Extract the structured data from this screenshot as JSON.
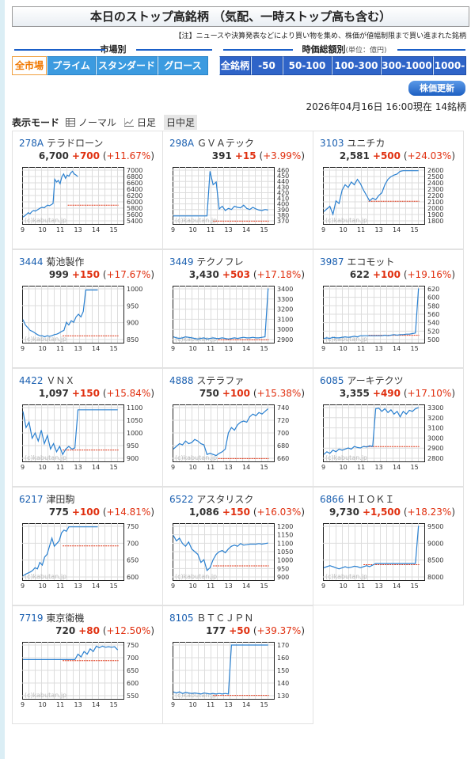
{
  "page": {
    "title": "本日のストップ高銘柄 （気配、一時ストップ高も含む）",
    "note_tag": "【注】",
    "note": "ニュースや決算発表などにより買い物を集め、株価が値幅制限まで買い進まれた銘柄",
    "market_label": "市場別",
    "cap_label": "時価総額別",
    "cap_unit": "(単位：億円)",
    "market_buttons": [
      "全市場",
      "プライム",
      "スタンダード",
      "グロース"
    ],
    "cap_buttons": [
      "全銘柄",
      "-50",
      "50-100",
      "100-300",
      "300-1000",
      "1000-"
    ],
    "update_button": "株価更新",
    "timestamp": "2026年04月16日  16:00現在  14銘柄",
    "mode_label": "表示モード",
    "modes": [
      "ノーマル",
      "日足",
      "日中足"
    ]
  },
  "colors": {
    "accent": "#1a5fc8",
    "up": "#e03010",
    "line": "#2a80d0",
    "ref": "#e03010"
  },
  "stocks": [
    {
      "code": "278A",
      "name": "テラドローン",
      "price": "6,700",
      "change": "+700",
      "pct": "+11.67%",
      "yticks": [
        "7000",
        "6800",
        "6600",
        "6400",
        "6200",
        "6000",
        "5800",
        "5600",
        "5400"
      ],
      "series": [
        0.1,
        0.12,
        0.15,
        0.18,
        0.16,
        0.2,
        0.22,
        0.21,
        0.23,
        0.25,
        0.27,
        0.28,
        0.27,
        0.3,
        0.32,
        0.31,
        0.33,
        0.35,
        0.8,
        0.75,
        0.78,
        0.72,
        0.85,
        0.9,
        0.82,
        0.88,
        0.86,
        0.92,
        0.95,
        0.9,
        0.88,
        0.85
      ],
      "ref": 0.33,
      "refFrom": 0.45,
      "refTo": 0.95,
      "xend": 0.55,
      "jumpAt": 0.42
    },
    {
      "code": "298A",
      "name": "ＧＶＡテック",
      "price": "391",
      "change": "+15",
      "pct": "+3.99%",
      "yticks": [
        "460",
        "450",
        "440",
        "430",
        "420",
        "410",
        "400",
        "390",
        "380",
        "370"
      ],
      "series": [
        0.12,
        0.12,
        0.12,
        0.12,
        0.12,
        0.12,
        0.12,
        0.12,
        0.12,
        0.12,
        0.12,
        0.12,
        0.95,
        0.7,
        0.75,
        0.25,
        0.3,
        0.22,
        0.26,
        0.24,
        0.3,
        0.28,
        0.27,
        0.32,
        0.26,
        0.24,
        0.28,
        0.25,
        0.23,
        0.22,
        0.24,
        0.23
      ],
      "ref": 0.05,
      "refFrom": 0.4,
      "refTo": 0.95,
      "xend": 0.95
    },
    {
      "code": "3103",
      "name": "ユニチカ",
      "price": "2,581",
      "change": "+500",
      "pct": "+24.03%",
      "yticks": [
        "2600",
        "2500",
        "2400",
        "2300",
        "2200",
        "2100",
        "2000",
        "1900",
        "1800"
      ],
      "series": [
        0.2,
        0.25,
        0.3,
        0.15,
        0.4,
        0.35,
        0.6,
        0.7,
        0.65,
        0.75,
        0.7,
        0.8,
        0.72,
        0.6,
        0.5,
        0.4,
        0.45,
        0.42,
        0.5,
        0.55,
        0.7,
        0.8,
        0.85,
        0.88,
        0.9,
        0.95,
        0.96,
        0.96,
        0.96,
        0.96,
        0.96,
        0.96
      ],
      "ref": 0.4,
      "refFrom": 0.45,
      "refTo": 0.95,
      "xend": 0.95
    },
    {
      "code": "3444",
      "name": "菊池製作",
      "price": "999",
      "change": "+150",
      "pct": "+17.67%",
      "yticks": [
        "1000",
        "950",
        "900",
        "850"
      ],
      "series": [
        0.4,
        0.3,
        0.25,
        0.2,
        0.18,
        0.15,
        0.12,
        0.1,
        0.1,
        0.08,
        0.1,
        0.09,
        0.1,
        0.12,
        0.13,
        0.15,
        0.18,
        0.2,
        0.35,
        0.3,
        0.38,
        0.35,
        0.45,
        0.5,
        0.45,
        0.55,
        0.95,
        0.95,
        0.95,
        0.95,
        0.95,
        0.95
      ],
      "ref": 0.12,
      "refFrom": 0.4,
      "refTo": 0.95,
      "xend": 0.75
    },
    {
      "code": "3449",
      "name": "テクノフレ",
      "price": "3,430",
      "change": "+503",
      "pct": "+17.18%",
      "yticks": [
        "3400",
        "3300",
        "3200",
        "3100",
        "3000",
        "2900"
      ],
      "series": [
        0.08,
        0.06,
        0.05,
        0.06,
        0.08,
        0.07,
        0.06,
        0.05,
        0.04,
        0.05,
        0.06,
        0.04,
        0.05,
        0.06,
        0.05,
        0.05,
        0.06,
        0.05,
        0.04,
        0.05,
        0.06,
        0.05,
        0.06,
        0.07,
        0.06,
        0.06,
        0.07,
        0.06,
        0.06,
        0.07,
        0.08,
        0.98
      ],
      "ref": 0.05,
      "refFrom": 0.45,
      "refTo": 0.95,
      "xend": 0.95
    },
    {
      "code": "3987",
      "name": "エコモット",
      "price": "622",
      "change": "+100",
      "pct": "+19.16%",
      "yticks": [
        "620",
        "600",
        "580",
        "560",
        "540",
        "520",
        "500"
      ],
      "series": [
        0.05,
        0.06,
        0.05,
        0.07,
        0.06,
        0.06,
        0.07,
        0.08,
        0.07,
        0.08,
        0.09,
        0.08,
        0.1,
        0.1,
        0.1,
        0.1,
        0.1,
        0.1,
        0.1,
        0.1,
        0.11,
        0.1,
        0.11,
        0.12,
        0.11,
        0.12,
        0.12,
        0.13,
        0.13,
        0.14,
        0.15,
        0.98
      ],
      "ref": 0.13,
      "refFrom": 0.45,
      "refTo": 0.95,
      "xend": 0.95
    },
    {
      "code": "4422",
      "name": "ＶＮＸ",
      "price": "1,097",
      "change": "+150",
      "pct": "+15.84%",
      "yticks": [
        "1100",
        "1050",
        "1000",
        "950",
        "900"
      ],
      "series": [
        0.9,
        0.6,
        0.7,
        0.4,
        0.5,
        0.35,
        0.55,
        0.3,
        0.45,
        0.2,
        0.3,
        0.15,
        0.25,
        0.1,
        0.2,
        0.25,
        0.2,
        0.22,
        0.93,
        0.93,
        0.93,
        0.93,
        0.93,
        0.93,
        0.93,
        0.93,
        0.93,
        0.93,
        0.93,
        0.93,
        0.93,
        0.93
      ],
      "ref": 0.2,
      "refFrom": 0.4,
      "refTo": 0.95,
      "xend": 0.95,
      "gapAt": 0.55
    },
    {
      "code": "4888",
      "name": "ステラファ",
      "price": "750",
      "change": "+100",
      "pct": "+15.38%",
      "yticks": [
        "740",
        "720",
        "700",
        "680",
        "660"
      ],
      "series": [
        0.2,
        0.25,
        0.3,
        0.28,
        0.35,
        0.3,
        0.32,
        0.38,
        0.35,
        0.3,
        0.28,
        0.1,
        0.12,
        0.1,
        0.08,
        0.12,
        0.15,
        0.2,
        0.5,
        0.6,
        0.55,
        0.65,
        0.7,
        0.72,
        0.7,
        0.8,
        0.85,
        0.82,
        0.88,
        0.85,
        0.9,
        0.95
      ],
      "ref": 0.05,
      "refFrom": 0.45,
      "refTo": 0.95,
      "xend": 0.95
    },
    {
      "code": "6085",
      "name": "アーキテクツ",
      "price": "3,355",
      "change": "+490",
      "pct": "+17.10%",
      "yticks": [
        "3300",
        "3200",
        "3100",
        "3000",
        "2900",
        "2800"
      ],
      "series": [
        0.1,
        0.15,
        0.12,
        0.18,
        0.15,
        0.2,
        0.18,
        0.2,
        0.22,
        0.2,
        0.25,
        0.23,
        0.22,
        0.25,
        0.24,
        0.26,
        0.25,
        0.95,
        0.96,
        0.9,
        0.95,
        0.88,
        0.93,
        0.85,
        0.9,
        0.8,
        0.9,
        0.85,
        0.92,
        0.9,
        0.95,
        0.97
      ],
      "ref": 0.26,
      "refFrom": 0.4,
      "refTo": 0.95,
      "xend": 0.95
    },
    {
      "code": "6217",
      "name": "津田駒",
      "price": "775",
      "change": "+100",
      "pct": "+14.81%",
      "yticks": [
        "750",
        "700",
        "650",
        "600"
      ],
      "series": [
        0.05,
        0.08,
        0.1,
        0.12,
        0.15,
        0.2,
        0.18,
        0.3,
        0.25,
        0.4,
        0.45,
        0.6,
        0.75,
        0.6,
        0.65,
        0.7,
        0.85,
        0.9,
        0.88,
        0.96,
        0.96,
        0.96,
        0.96,
        0.96,
        0.96,
        0.96,
        0.96,
        0.96,
        0.96,
        0.96,
        0.96,
        0.96
      ],
      "ref": 0.6,
      "refFrom": 0.4,
      "refTo": 0.95,
      "xend": 0.75
    },
    {
      "code": "6522",
      "name": "アスタリスク",
      "price": "1,086",
      "change": "+150",
      "pct": "+16.03%",
      "yticks": [
        "1200",
        "1150",
        "1100",
        "1050",
        "1000",
        "950",
        "900"
      ],
      "series": [
        0.8,
        0.7,
        0.75,
        0.65,
        0.6,
        0.68,
        0.55,
        0.5,
        0.45,
        0.3,
        0.35,
        0.15,
        0.2,
        0.35,
        0.45,
        0.5,
        0.52,
        0.48,
        0.55,
        0.6,
        0.62,
        0.6,
        0.65,
        0.62,
        0.63,
        0.64,
        0.64,
        0.64,
        0.65,
        0.64,
        0.65,
        0.66
      ],
      "ref": 0.25,
      "refFrom": 0.4,
      "refTo": 0.95,
      "xend": 0.95
    },
    {
      "code": "6866",
      "name": "ＨＩＯＫＩ",
      "price": "9,730",
      "change": "+1,500",
      "pct": "+18.23%",
      "yticks": [
        "9500",
        "9000",
        "8500",
        "8000"
      ],
      "series": [
        0.2,
        0.22,
        0.24,
        0.22,
        0.2,
        0.18,
        0.2,
        0.22,
        0.2,
        0.21,
        0.23,
        0.22,
        0.2,
        0.22,
        0.24,
        0.22,
        0.25,
        0.28,
        0.28,
        0.28,
        0.28,
        0.28,
        0.28,
        0.28,
        0.28,
        0.28,
        0.28,
        0.28,
        0.28,
        0.28,
        0.28,
        0.98
      ],
      "ref": 0.27,
      "refFrom": 0.4,
      "refTo": 0.95,
      "xend": 0.95
    },
    {
      "code": "7719",
      "name": "東京衛機",
      "price": "720",
      "change": "+80",
      "pct": "+12.50%",
      "yticks": [
        "750",
        "700",
        "650",
        "600",
        "550"
      ],
      "series": [
        0.7,
        0.7,
        0.7,
        0.7,
        0.7,
        0.7,
        0.7,
        0.7,
        0.7,
        0.7,
        0.7,
        0.7,
        0.7,
        0.7,
        0.7,
        0.7,
        0.7,
        0.7,
        0.8,
        0.75,
        0.85,
        0.8,
        0.9,
        0.85,
        0.95,
        0.92,
        0.95,
        0.93,
        0.94,
        0.93,
        0.94,
        0.88
      ],
      "ref": 0.67,
      "refFrom": 0.4,
      "refTo": 0.95,
      "xend": 0.95
    },
    {
      "code": "8105",
      "name": "ＢＴＣＪＰＮ",
      "price": "177",
      "change": "+50",
      "pct": "+39.37%",
      "yticks": [
        "170",
        "160",
        "150",
        "140",
        "130"
      ],
      "series": [
        0.1,
        0.08,
        0.1,
        0.07,
        0.09,
        0.08,
        0.07,
        0.08,
        0.07,
        0.06,
        0.08,
        0.07,
        0.06,
        0.07,
        0.06,
        0.07,
        0.06,
        0.07,
        0.06,
        0.97,
        0.97,
        0.97,
        0.97,
        0.97,
        0.97,
        0.97,
        0.97,
        0.97,
        0.97,
        0.97,
        0.97,
        0.97
      ],
      "ref": 0.06,
      "refFrom": 0.4,
      "refTo": 0.95,
      "xend": 0.95
    }
  ],
  "chart": {
    "xlabels": [
      "9",
      "10",
      "11",
      "13",
      "14",
      "15"
    ],
    "watermark": "(c)kabutan.jp"
  }
}
